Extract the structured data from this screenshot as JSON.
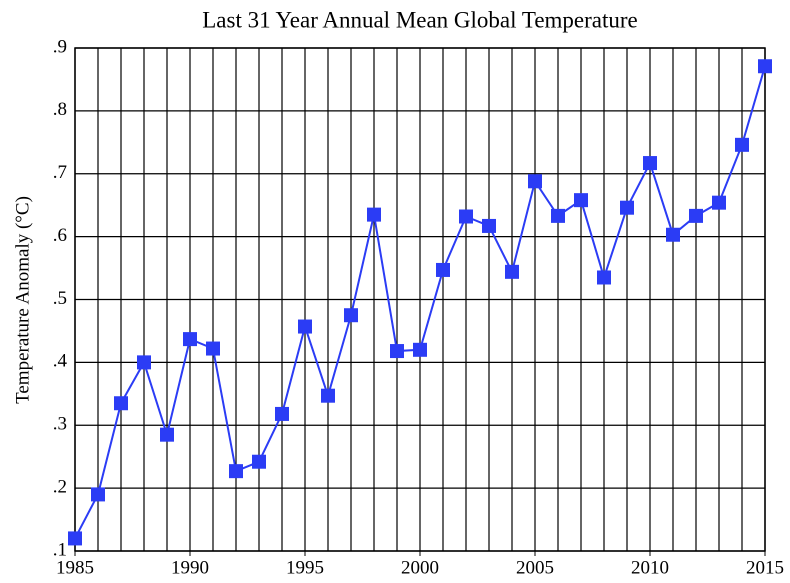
{
  "chart_data": {
    "type": "line",
    "title": "Last 31 Year Annual Mean Global Temperature",
    "y_label": "Temperature Anomaly (°C)",
    "x": [
      1985,
      1986,
      1987,
      1988,
      1989,
      1990,
      1991,
      1992,
      1993,
      1994,
      1995,
      1996,
      1997,
      1998,
      1999,
      2000,
      2001,
      2002,
      2003,
      2004,
      2005,
      2006,
      2007,
      2008,
      2009,
      2010,
      2011,
      2012,
      2013,
      2014,
      2015
    ],
    "values": [
      0.12,
      0.19,
      0.335,
      0.4,
      0.285,
      0.437,
      0.422,
      0.227,
      0.242,
      0.318,
      0.457,
      0.347,
      0.475,
      0.635,
      0.418,
      0.42,
      0.547,
      0.632,
      0.617,
      0.544,
      0.688,
      0.633,
      0.658,
      0.535,
      0.646,
      0.717,
      0.603,
      0.633,
      0.654,
      0.746,
      0.871
    ],
    "color": "#2b3cf5",
    "xlim": [
      1985,
      2015
    ],
    "xticks": [
      1985,
      1990,
      1995,
      2000,
      2005,
      2010,
      2015
    ],
    "ylim": [
      0.1,
      0.9
    ],
    "yticks": [
      {
        "value": 0.1,
        "label": ".1"
      },
      {
        "value": 0.2,
        "label": ".2"
      },
      {
        "value": 0.3,
        "label": ".3"
      },
      {
        "value": 0.4,
        "label": ".4"
      },
      {
        "value": 0.5,
        "label": ".5"
      },
      {
        "value": 0.6,
        "label": ".6"
      },
      {
        "value": 0.7,
        "label": ".7"
      },
      {
        "value": 0.8,
        "label": ".8"
      },
      {
        "value": 0.9,
        "label": ".9"
      }
    ],
    "grid": true
  }
}
